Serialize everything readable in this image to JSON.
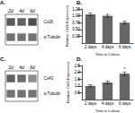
{
  "chart_data": [
    {
      "type": "blot",
      "title": "A.",
      "categories": [
        "2d",
        "4d",
        "6d"
      ],
      "series": [
        {
          "name": "←Cx26",
          "values": [
            0.35,
            0.38,
            0.3
          ]
        },
        {
          "name": "←α-Tubulin",
          "values": [
            0.45,
            0.45,
            0.45
          ]
        }
      ]
    },
    {
      "type": "bar",
      "title": "B.",
      "categories": [
        "2 days",
        "4 days",
        "6 days"
      ],
      "values": [
        1.05,
        1.0,
        0.75
      ],
      "errors": [
        0.05,
        0.05,
        0.05
      ],
      "color": "#666666",
      "xlabel": "Time in Culture",
      "ylabel": "Relative Cx26 Expression",
      "ylim": [
        0.0,
        1.25
      ],
      "yticks": [
        0.25,
        {
          "value": 0.5,
          "label": "0.50"
        },
        0.75,
        {
          "value": 1.0,
          "label": "1.00"
        },
        1.25
      ],
      "grid": false
    },
    {
      "type": "blot",
      "title": "C.",
      "categories": [
        "2d",
        "4d",
        "6d"
      ],
      "series": [
        {
          "name": "←Cx43",
          "values": [
            0.38,
            0.42,
            0.55
          ]
        },
        {
          "name": "←α-Tubulin",
          "values": [
            0.45,
            0.45,
            0.45
          ]
        }
      ]
    },
    {
      "type": "bar",
      "title": "D.",
      "categories": [
        "2 days",
        "4 days",
        "6 days"
      ],
      "values": [
        1.0,
        1.25,
        1.9
      ],
      "errors": [
        0.08,
        0.1,
        0.12
      ],
      "color": "#666666",
      "xlabel": "Time in Culture",
      "ylabel": "Relative Cx43 Expression",
      "ylim": [
        0.0,
        2.5
      ],
      "yticks": [
        0.5,
        {
          "value": 1.0,
          "label": "1.0"
        },
        1.5,
        {
          "value": 2.0,
          "label": "2.0"
        },
        2.5
      ],
      "annotations": [
        {
          "text": "*",
          "x": "6 days",
          "y": 2.07
        }
      ],
      "grid": false
    }
  ]
}
